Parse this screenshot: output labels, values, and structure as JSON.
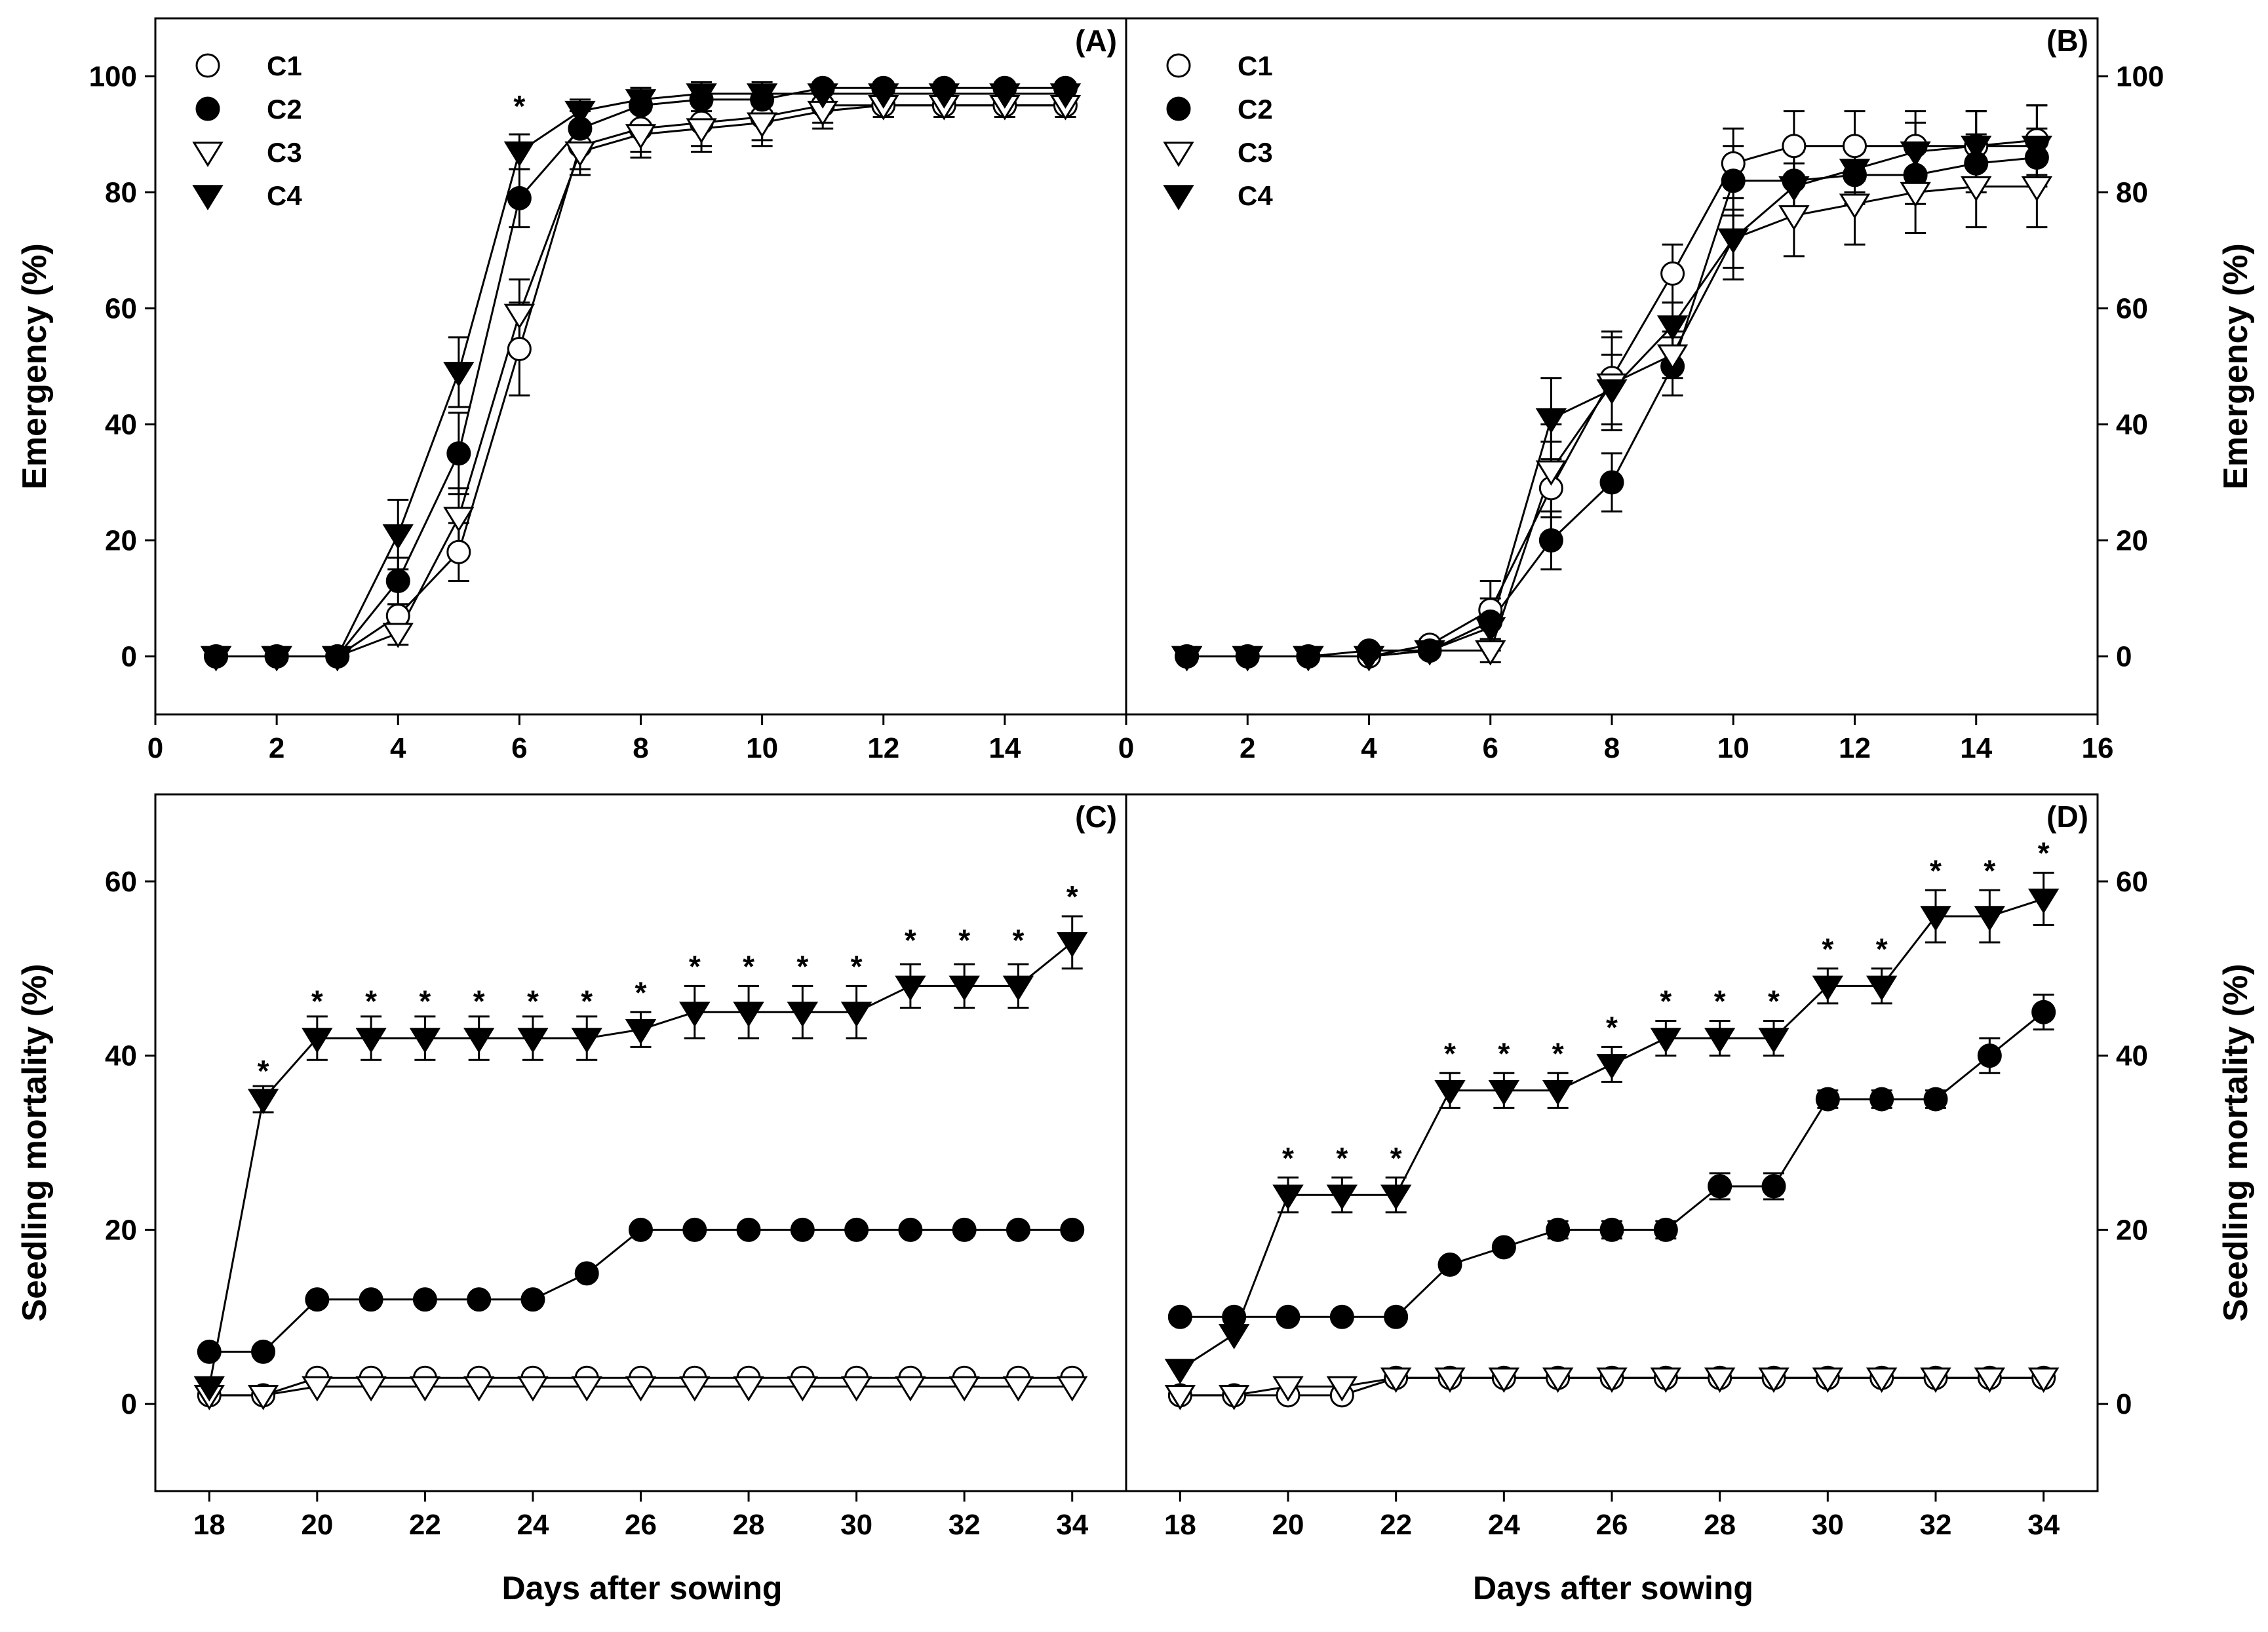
{
  "chart_data": [
    {
      "panel": "(A)",
      "type": "line",
      "ylabel": "Emergency (%)",
      "xlabel": "",
      "xlim": [
        0,
        16
      ],
      "ylim": [
        -10,
        110
      ],
      "xticks": [
        0,
        2,
        4,
        6,
        8,
        10,
        12,
        14
      ],
      "yticks": [
        0,
        20,
        40,
        60,
        80,
        100
      ],
      "legend": [
        "C1",
        "C2",
        "C3",
        "C4"
      ],
      "legend_position": "top-left",
      "x": [
        1,
        2,
        3,
        4,
        5,
        6,
        7,
        8,
        9,
        10,
        11,
        12,
        13,
        14,
        15
      ],
      "series": [
        {
          "name": "C1",
          "marker": "circle-open",
          "values": [
            0,
            0,
            0,
            7,
            18,
            53,
            88,
            91,
            92,
            93,
            95,
            95,
            95,
            95,
            95
          ],
          "errors": [
            0,
            0,
            0,
            2,
            5,
            8,
            4,
            4,
            4,
            4,
            3,
            2,
            2,
            2,
            2
          ]
        },
        {
          "name": "C2",
          "marker": "circle-filled",
          "values": [
            0,
            0,
            0,
            13,
            35,
            79,
            91,
            95,
            96,
            96,
            98,
            98,
            98,
            98,
            98
          ],
          "errors": [
            0,
            0,
            0,
            4,
            7,
            5,
            3,
            3,
            2,
            2,
            1,
            1,
            1,
            1,
            1
          ]
        },
        {
          "name": "C3",
          "marker": "triangle-down-open",
          "values": [
            0,
            0,
            0,
            4,
            24,
            59,
            87,
            90,
            91,
            92,
            94,
            95,
            95,
            95,
            95
          ],
          "errors": [
            0,
            0,
            0,
            2,
            5,
            6,
            4,
            4,
            4,
            4,
            3,
            2,
            2,
            2,
            2
          ]
        },
        {
          "name": "C4",
          "marker": "triangle-down-filled",
          "values": [
            0,
            0,
            0,
            21,
            49,
            87,
            94,
            96,
            97,
            97,
            97,
            97,
            97,
            97,
            97
          ],
          "errors": [
            0,
            0,
            0,
            6,
            6,
            3,
            2,
            2,
            2,
            2,
            1,
            1,
            1,
            1,
            1
          ]
        }
      ],
      "significance": [
        {
          "x": 6,
          "y": 96,
          "text": "*"
        }
      ]
    },
    {
      "panel": "(B)",
      "type": "line",
      "ylabel": "Emergency (%)",
      "xlabel": "",
      "xlim": [
        0,
        16
      ],
      "ylim": [
        -10,
        110
      ],
      "xticks": [
        0,
        2,
        4,
        6,
        8,
        10,
        12,
        14,
        16
      ],
      "yticks": [
        0,
        20,
        40,
        60,
        80,
        100
      ],
      "legend": [
        "C1",
        "C2",
        "C3",
        "C4"
      ],
      "legend_position": "top-left",
      "x": [
        1,
        2,
        3,
        4,
        5,
        6,
        7,
        8,
        9,
        10,
        11,
        12,
        13,
        14,
        15
      ],
      "series": [
        {
          "name": "C1",
          "marker": "circle-open",
          "values": [
            0,
            0,
            0,
            0,
            2,
            8,
            29,
            48,
            66,
            85,
            88,
            88,
            88,
            88,
            89
          ],
          "errors": [
            0,
            0,
            0,
            0,
            1,
            5,
            8,
            8,
            5,
            6,
            6,
            6,
            6,
            6,
            6
          ]
        },
        {
          "name": "C2",
          "marker": "circle-filled",
          "values": [
            0,
            0,
            0,
            1,
            1,
            6,
            20,
            30,
            50,
            82,
            82,
            83,
            83,
            85,
            86
          ],
          "errors": [
            0,
            0,
            0,
            0,
            1,
            4,
            5,
            5,
            5,
            6,
            5,
            5,
            5,
            5,
            5
          ]
        },
        {
          "name": "C3",
          "marker": "triangle-down-open",
          "values": [
            0,
            0,
            0,
            0,
            1,
            1,
            32,
            47,
            52,
            72,
            76,
            78,
            80,
            81,
            81
          ],
          "errors": [
            0,
            0,
            0,
            0,
            1,
            2,
            8,
            8,
            4,
            7,
            7,
            7,
            7,
            7,
            7
          ]
        },
        {
          "name": "C4",
          "marker": "triangle-down-filled",
          "values": [
            0,
            0,
            0,
            0,
            1,
            5,
            41,
            46,
            57,
            72,
            81,
            84,
            87,
            88,
            88
          ],
          "errors": [
            0,
            0,
            0,
            0,
            1,
            4,
            7,
            6,
            4,
            5,
            4,
            4,
            5,
            6,
            7
          ]
        }
      ],
      "significance": []
    },
    {
      "panel": "(C)",
      "type": "line",
      "ylabel": "Seedling mortality (%)",
      "xlabel": "Days after sowing",
      "xlim": [
        17,
        35
      ],
      "ylim": [
        -10,
        70
      ],
      "xticks": [
        18,
        20,
        22,
        24,
        26,
        28,
        30,
        32,
        34
      ],
      "yticks": [
        0,
        20,
        40,
        60
      ],
      "x": [
        18,
        19,
        20,
        21,
        22,
        23,
        24,
        25,
        26,
        27,
        28,
        29,
        30,
        31,
        32,
        33,
        34
      ],
      "series": [
        {
          "name": "C1",
          "marker": "circle-open",
          "values": [
            1,
            1,
            3,
            3,
            3,
            3,
            3,
            3,
            3,
            3,
            3,
            3,
            3,
            3,
            3,
            3,
            3
          ],
          "errors": [
            0,
            0,
            0,
            0,
            0,
            0,
            0,
            0,
            0,
            0,
            0,
            0,
            0,
            0,
            0,
            0,
            0
          ]
        },
        {
          "name": "C2",
          "marker": "circle-filled",
          "values": [
            6,
            6,
            12,
            12,
            12,
            12,
            12,
            15,
            20,
            20,
            20,
            20,
            20,
            20,
            20,
            20,
            20
          ],
          "errors": [
            0,
            0,
            0,
            0,
            0,
            0,
            0,
            0,
            0,
            0,
            0,
            0,
            0,
            0,
            0,
            0,
            0
          ]
        },
        {
          "name": "C3",
          "marker": "triangle-down-open",
          "values": [
            1,
            1,
            2,
            2,
            2,
            2,
            2,
            2,
            2,
            2,
            2,
            2,
            2,
            2,
            2,
            2,
            2
          ],
          "errors": [
            0,
            0,
            0,
            0,
            0,
            0,
            0,
            0,
            0,
            0,
            0,
            0,
            0,
            0,
            0,
            0,
            0
          ]
        },
        {
          "name": "C4",
          "marker": "triangle-down-filled",
          "values": [
            2,
            35,
            42,
            42,
            42,
            42,
            42,
            42,
            43,
            45,
            45,
            45,
            45,
            48,
            48,
            48,
            53
          ],
          "errors": [
            0,
            1.5,
            2.5,
            2.5,
            2.5,
            2.5,
            2.5,
            2.5,
            2,
            3,
            3,
            3,
            3,
            2.5,
            2.5,
            2.5,
            3
          ]
        }
      ],
      "significance": [
        {
          "x": 19,
          "y": 39,
          "text": "*"
        },
        {
          "x": 20,
          "y": 47,
          "text": "*"
        },
        {
          "x": 21,
          "y": 47,
          "text": "*"
        },
        {
          "x": 22,
          "y": 47,
          "text": "*"
        },
        {
          "x": 23,
          "y": 47,
          "text": "*"
        },
        {
          "x": 24,
          "y": 47,
          "text": "*"
        },
        {
          "x": 25,
          "y": 47,
          "text": "*"
        },
        {
          "x": 26,
          "y": 48,
          "text": "*"
        },
        {
          "x": 27,
          "y": 51,
          "text": "*"
        },
        {
          "x": 28,
          "y": 51,
          "text": "*"
        },
        {
          "x": 29,
          "y": 51,
          "text": "*"
        },
        {
          "x": 30,
          "y": 51,
          "text": "*"
        },
        {
          "x": 31,
          "y": 54,
          "text": "*"
        },
        {
          "x": 32,
          "y": 54,
          "text": "*"
        },
        {
          "x": 33,
          "y": 54,
          "text": "*"
        },
        {
          "x": 34,
          "y": 59,
          "text": "*"
        }
      ]
    },
    {
      "panel": "(D)",
      "type": "line",
      "ylabel": "Seedling mortality (%)",
      "xlabel": "Days after sowing",
      "xlim": [
        17,
        35
      ],
      "ylim": [
        -10,
        70
      ],
      "xticks": [
        18,
        20,
        22,
        24,
        26,
        28,
        30,
        32,
        34
      ],
      "yticks": [
        0,
        20,
        40,
        60
      ],
      "x": [
        18,
        19,
        20,
        21,
        22,
        23,
        24,
        25,
        26,
        27,
        28,
        29,
        30,
        31,
        32,
        33,
        34
      ],
      "series": [
        {
          "name": "C1",
          "marker": "circle-open",
          "values": [
            1,
            1,
            1,
            1,
            3,
            3,
            3,
            3,
            3,
            3,
            3,
            3,
            3,
            3,
            3,
            3,
            3
          ],
          "errors": [
            0,
            0,
            0,
            0,
            0,
            0,
            0,
            0,
            0,
            0,
            0,
            0,
            0,
            0,
            0,
            0,
            0
          ]
        },
        {
          "name": "C2",
          "marker": "circle-filled",
          "values": [
            10,
            10,
            10,
            10,
            10,
            16,
            18,
            20,
            20,
            20,
            25,
            25,
            35,
            35,
            35,
            40,
            45
          ],
          "errors": [
            0,
            0,
            0,
            0,
            0,
            0,
            0,
            1,
            1,
            1,
            1.5,
            1.5,
            1,
            1,
            1,
            2,
            2
          ]
        },
        {
          "name": "C3",
          "marker": "triangle-down-open",
          "values": [
            1,
            1,
            2,
            2,
            3,
            3,
            3,
            3,
            3,
            3,
            3,
            3,
            3,
            3,
            3,
            3,
            3
          ],
          "errors": [
            0,
            0,
            0,
            0,
            0,
            0,
            0,
            0,
            0,
            0,
            0,
            0,
            0,
            0,
            0,
            0,
            0
          ]
        },
        {
          "name": "C4",
          "marker": "triangle-down-filled",
          "values": [
            4,
            8,
            24,
            24,
            24,
            36,
            36,
            36,
            39,
            42,
            42,
            42,
            48,
            48,
            56,
            56,
            58
          ],
          "errors": [
            0,
            0,
            2,
            2,
            2,
            2,
            2,
            2,
            2,
            2,
            2,
            2,
            2,
            2,
            3,
            3,
            3
          ]
        }
      ],
      "significance": [
        {
          "x": 20,
          "y": 29,
          "text": "*"
        },
        {
          "x": 21,
          "y": 29,
          "text": "*"
        },
        {
          "x": 22,
          "y": 29,
          "text": "*"
        },
        {
          "x": 23,
          "y": 41,
          "text": "*"
        },
        {
          "x": 24,
          "y": 41,
          "text": "*"
        },
        {
          "x": 25,
          "y": 41,
          "text": "*"
        },
        {
          "x": 26,
          "y": 44,
          "text": "*"
        },
        {
          "x": 27,
          "y": 47,
          "text": "*"
        },
        {
          "x": 28,
          "y": 47,
          "text": "*"
        },
        {
          "x": 29,
          "y": 47,
          "text": "*"
        },
        {
          "x": 30,
          "y": 53,
          "text": "*"
        },
        {
          "x": 31,
          "y": 53,
          "text": "*"
        },
        {
          "x": 32,
          "y": 62,
          "text": "*"
        },
        {
          "x": 33,
          "y": 62,
          "text": "*"
        },
        {
          "x": 34,
          "y": 64,
          "text": "*"
        }
      ]
    }
  ]
}
